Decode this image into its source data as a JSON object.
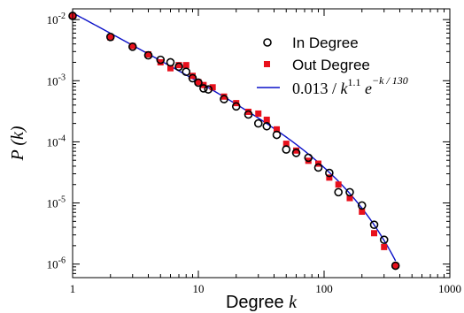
{
  "chart_data": {
    "type": "scatter",
    "x_scale": "log",
    "y_scale": "log",
    "xlim": [
      1,
      1000
    ],
    "ylim": [
      6e-07,
      0.015
    ],
    "xlabel": "Degree",
    "xlabel_var": "k",
    "ylabel": "P (k)",
    "x_ticks": [
      {
        "value": 1,
        "label": "1"
      },
      {
        "value": 10,
        "label": "10"
      },
      {
        "value": 100,
        "label": "100"
      },
      {
        "value": 1000,
        "label": "1000"
      }
    ],
    "y_ticks": [
      {
        "value": 1e-06,
        "base": "10",
        "exp": "-6"
      },
      {
        "value": 1e-05,
        "base": "10",
        "exp": "-5"
      },
      {
        "value": 0.0001,
        "base": "10",
        "exp": "-4"
      },
      {
        "value": 0.001,
        "base": "10",
        "exp": "-3"
      },
      {
        "value": 0.01,
        "base": "10",
        "exp": "-2"
      }
    ],
    "legend_position": "top-right",
    "series": [
      {
        "name": "In Degree",
        "marker": "open-circle",
        "color": "#000000",
        "x": [
          1,
          2,
          3,
          4,
          5,
          6,
          7,
          8,
          9,
          10,
          11,
          12,
          16,
          20,
          25,
          30,
          35,
          42,
          50,
          60,
          75,
          90,
          110,
          130,
          160,
          200,
          250,
          300,
          370
        ],
        "y": [
          0.0115,
          0.0052,
          0.0036,
          0.0026,
          0.0022,
          0.002,
          0.0017,
          0.0014,
          0.0011,
          0.00093,
          0.00075,
          0.00072,
          0.0005,
          0.00038,
          0.00028,
          0.0002,
          0.00018,
          0.00013,
          7.5e-05,
          6.6e-05,
          5.5e-05,
          3.8e-05,
          3.1e-05,
          1.5e-05,
          1.5e-05,
          9.1e-06,
          4.4e-06,
          2.5e-06,
          9.4e-07
        ]
      },
      {
        "name": "Out Degree",
        "marker": "filled-square",
        "color": "#e8101c",
        "x": [
          1,
          2,
          3,
          4,
          5,
          6,
          7,
          8,
          9,
          10,
          11,
          13,
          16,
          20,
          25,
          30,
          35,
          42,
          50,
          60,
          75,
          90,
          110,
          130,
          160,
          200,
          250,
          300,
          370
        ],
        "y": [
          0.0115,
          0.0051,
          0.0037,
          0.0027,
          0.002,
          0.0016,
          0.0018,
          0.0018,
          0.0012,
          0.00095,
          0.00085,
          0.00078,
          0.00055,
          0.00043,
          0.00031,
          0.00029,
          0.00023,
          0.00016,
          9.3e-05,
          7.2e-05,
          4.9e-05,
          4.4e-05,
          2.6e-05,
          2e-05,
          1.2e-05,
          7.2e-06,
          3.2e-06,
          1.9e-06,
          9.4e-07
        ]
      }
    ],
    "fit": {
      "name": "0.013 / k^1.1 e^(-k/130)",
      "color": "#0a10c8",
      "amplitude": 0.013,
      "exponent": 1.1,
      "cutoff": 130,
      "x_range": [
        1,
        370
      ],
      "label_parts": {
        "coef": "0.013 / ",
        "k": "k",
        "exp1": "1.1",
        "e": "e",
        "exp2": "−k / 130"
      }
    }
  }
}
